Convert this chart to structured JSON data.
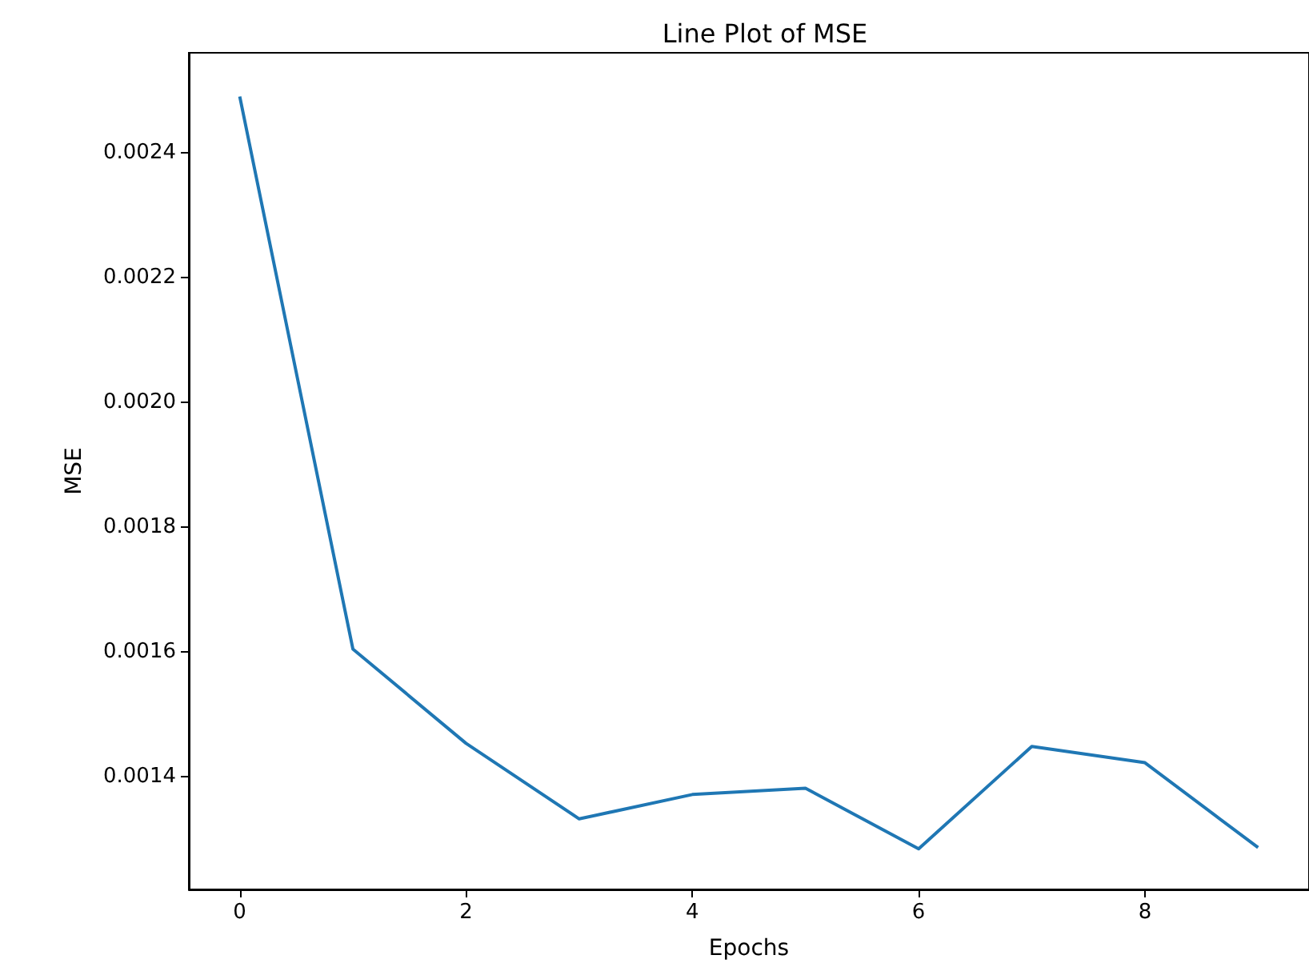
{
  "chart_data": {
    "type": "line",
    "title": "Line Plot of MSE",
    "xlabel": "Epochs",
    "ylabel": "MSE",
    "x": [
      0,
      1,
      2,
      3,
      4,
      5,
      6,
      7,
      8,
      9
    ],
    "series": [
      {
        "color": "#1f77b4",
        "values": [
          0.00249,
          0.001605,
          0.001454,
          0.001333,
          0.001372,
          0.001382,
          0.001285,
          0.001449,
          0.001423,
          0.001287
        ]
      }
    ],
    "xlim": [
      -0.45,
      9.45
    ],
    "xticks": [
      0,
      2,
      4,
      6,
      8
    ],
    "ylim": [
      0.00122,
      0.00256
    ],
    "yticks": [
      0.0014,
      0.0016,
      0.0018,
      {
        "value": 0.002,
        "label": "0.0020"
      },
      0.0022,
      0.0024
    ],
    "grid": false,
    "marker": "none",
    "line_style": "solid"
  }
}
